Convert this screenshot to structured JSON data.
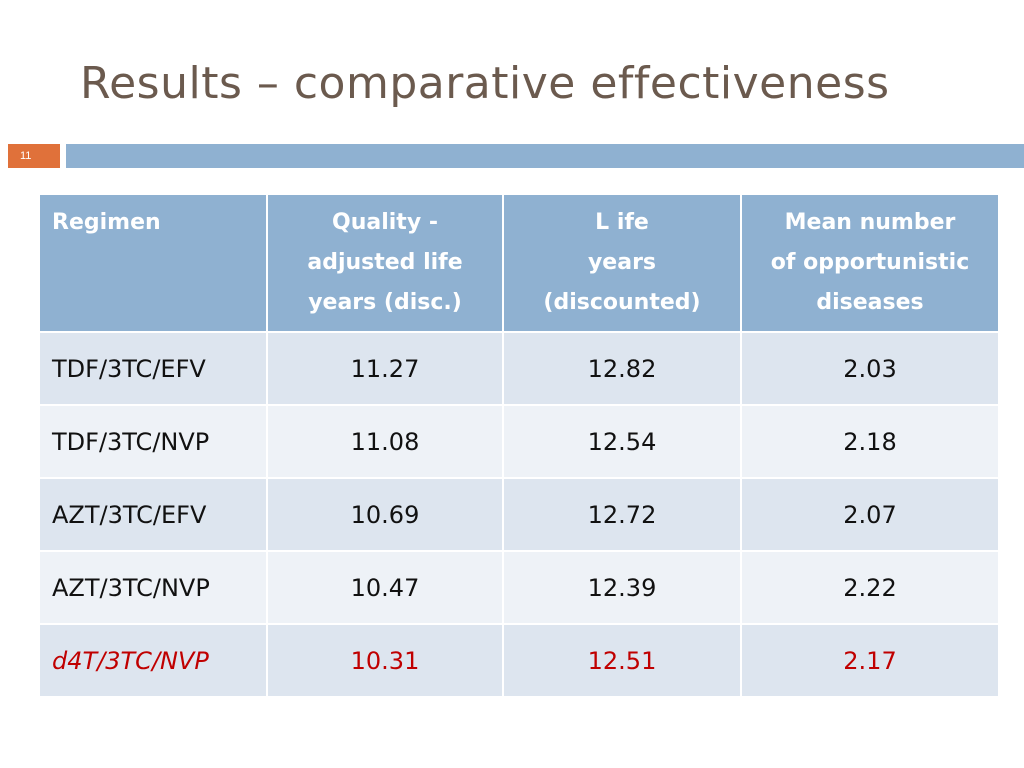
{
  "slide": {
    "title": "Results – comparative effectiveness",
    "number": "11"
  },
  "table": {
    "headers": [
      {
        "lines": [
          "Regimen"
        ]
      },
      {
        "lines": [
          "Quality - ",
          "adjusted life",
          "years (disc.)"
        ]
      },
      {
        "lines": [
          "L ife",
          "years",
          "(discounted)"
        ]
      },
      {
        "lines": [
          "Mean number",
          "of opportunistic",
          "diseases"
        ]
      }
    ],
    "rows": [
      {
        "regimen": "TDF/3TC/EFV",
        "qaly": "11.27",
        "life_years": "12.82",
        "oi": "2.03"
      },
      {
        "regimen": "TDF/3TC/NVP",
        "qaly": "11.08",
        "life_years": "12.54",
        "oi": "2.18"
      },
      {
        "regimen": "AZT/3TC/EFV",
        "qaly": "10.69",
        "life_years": "12.72",
        "oi": "2.07"
      },
      {
        "regimen": "AZT/3TC/NVP",
        "qaly": "10.47",
        "life_years": "12.39",
        "oi": "2.22"
      },
      {
        "regimen": "d4T/3TC/NVP",
        "qaly": "10.31",
        "life_years": "12.51",
        "oi": "2.17"
      }
    ],
    "highlight_color": "#c00000",
    "header_color": "#8fb1d1"
  }
}
